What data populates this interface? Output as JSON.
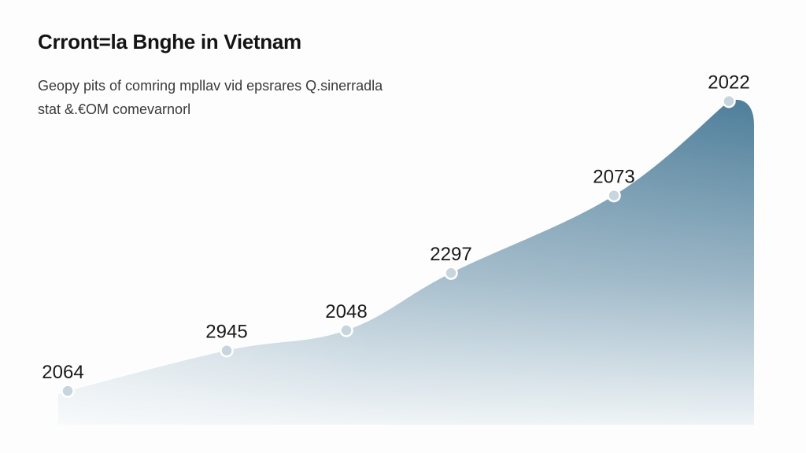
{
  "chart_data": {
    "type": "area",
    "title": "Crront=la Bnghe in Vietnam",
    "subtitle_lines": [
      "Geopy pits of comring mpllav vid epsrares Q.sinerradla",
      "stat &.€OM comevarnorl"
    ],
    "x": [
      1,
      2,
      3,
      4,
      5,
      6
    ],
    "point_labels": [
      "2064",
      "2945",
      "2048",
      "2297",
      "2073",
      "2022"
    ],
    "values": [
      1,
      2.2,
      2.8,
      4.5,
      6.8,
      9.6
    ],
    "ylim": [
      0,
      10.5
    ],
    "grid": false,
    "legend": "none",
    "colors": {
      "fill_top": "#4e7e9a",
      "fill_bottom": "#eef3f6",
      "marker": "#c7d5de",
      "marker_stroke": "#ffffff"
    }
  }
}
